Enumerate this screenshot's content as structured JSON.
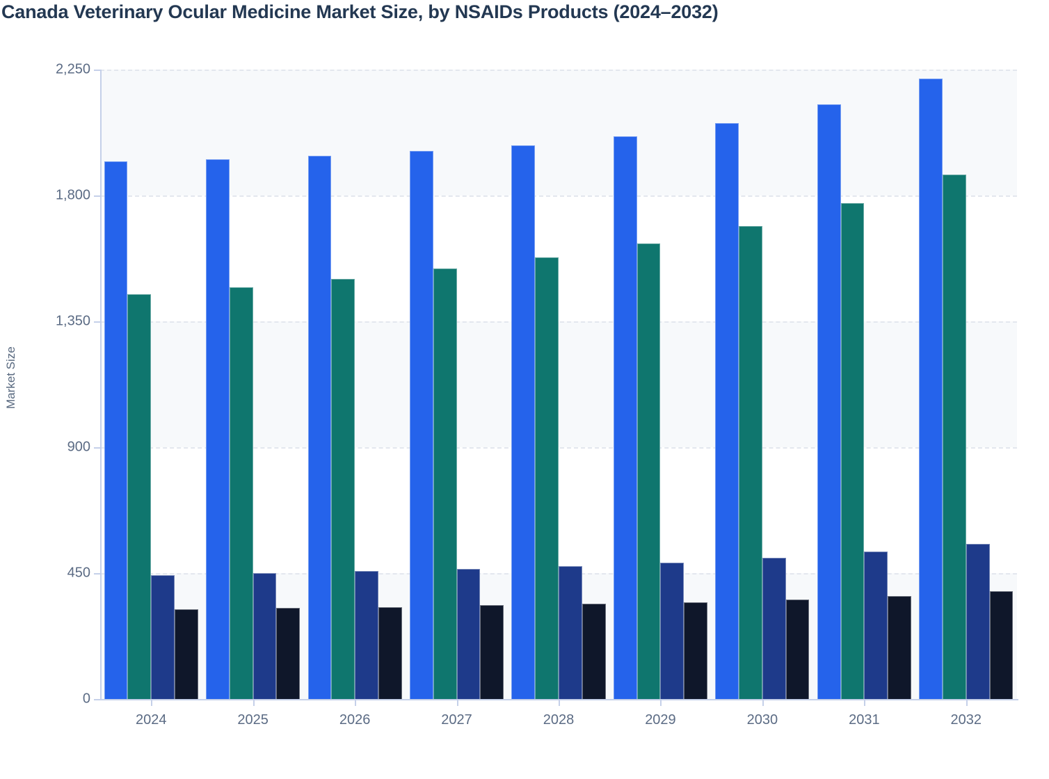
{
  "page": {
    "title": "Canada Veterinary Ocular Medicine Market Size, by NSAIDs Products (2024–2032)"
  },
  "chart_data": {
    "type": "bar",
    "title": "Canada Veterinary Ocular Medicine Market Size, by NSAIDs Products (2024–2032)",
    "xlabel": "",
    "ylabel": "Market Size",
    "categories": [
      "2024",
      "2025",
      "2026",
      "2027",
      "2028",
      "2029",
      "2030",
      "2031",
      "2032"
    ],
    "series": [
      {
        "name": "series-blue",
        "color": "#2563eb",
        "values": [
          1922,
          1929,
          1942,
          1958,
          1980,
          2011,
          2059,
          2125,
          2217
        ]
      },
      {
        "name": "series-teal",
        "color": "#0f766e",
        "values": [
          1446,
          1473,
          1502,
          1540,
          1580,
          1629,
          1691,
          1773,
          1874
        ]
      },
      {
        "name": "series-navy",
        "color": "#1e3a8a",
        "values": [
          442,
          449,
          457,
          464,
          476,
          487,
          505,
          526,
          554
        ]
      },
      {
        "name": "series-dark",
        "color": "#0f172a",
        "values": [
          321,
          325,
          329,
          336,
          341,
          346,
          356,
          369,
          385
        ]
      }
    ],
    "ylim": [
      0,
      2250
    ],
    "yticks": [
      0,
      450,
      900,
      1350,
      1800,
      2250
    ],
    "ytick_labels": [
      "0",
      "450",
      "900",
      "1,350",
      "1,800",
      "2,250"
    ],
    "grid": "horizontal-dashed",
    "legend": "none",
    "plot_background": "alternating-light-bands"
  },
  "colors": {
    "title_text": "#233852",
    "tick_label_text": "#5b6b84",
    "axis_line": "#c5d0e9",
    "gridline": "#e3e7ee",
    "band_fill": "#f7f9fb",
    "page_background": "#ffffff"
  }
}
